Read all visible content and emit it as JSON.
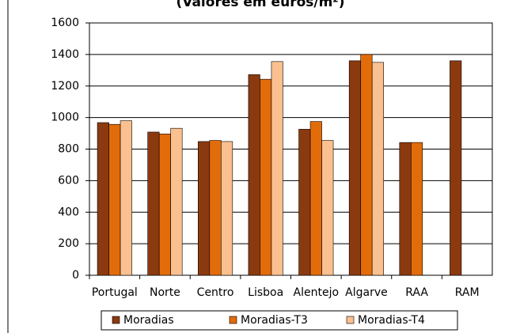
{
  "chart_data": {
    "type": "bar",
    "title": "(Valores em euros/m²)",
    "categories": [
      "Portugal",
      "Norte",
      "Centro",
      "Lisboa",
      "Alentejo",
      "Algarve",
      "RAA",
      "RAM"
    ],
    "series": [
      {
        "name": "Moradias",
        "color": "#8b3a0f",
        "values": [
          968,
          908,
          848,
          1272,
          926,
          1360,
          842,
          1360
        ]
      },
      {
        "name": "Moradias-T3",
        "color": "#e36c0a",
        "values": [
          957,
          896,
          855,
          1243,
          975,
          1400,
          842,
          null
        ]
      },
      {
        "name": "Moradias-T4",
        "color": "#fac08f",
        "values": [
          980,
          932,
          848,
          1355,
          855,
          1350,
          null,
          null
        ]
      }
    ],
    "ylim": [
      0,
      1600
    ],
    "yticks": [
      0,
      200,
      400,
      600,
      800,
      1000,
      1200,
      1400,
      1600
    ],
    "grid": true,
    "legend": "bottom"
  }
}
